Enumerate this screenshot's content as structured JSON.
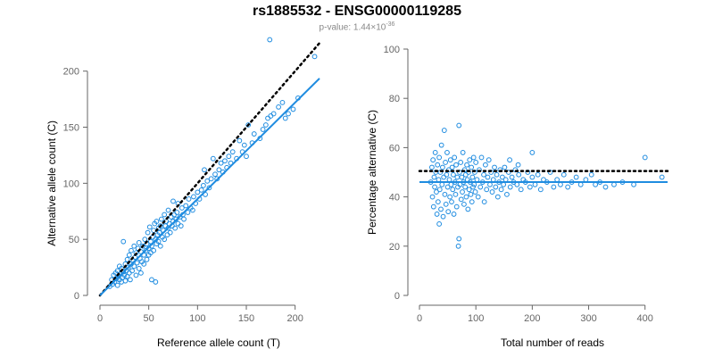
{
  "title": "rs1885532 - ENSG00000119285",
  "subtitle": {
    "prefix": "p-value: 1.44×10",
    "exponent": "-36"
  },
  "colors": {
    "points": "#1f8ce0",
    "fit": "#1f8ce0",
    "reference": "#000000",
    "axis": "#666666"
  },
  "chart_data": [
    {
      "type": "scatter",
      "xlabel": "Reference allele count (T)",
      "ylabel": "Alternative allele count (C)",
      "xlim": [
        0,
        225
      ],
      "ylim": [
        0,
        230
      ],
      "xticks": [
        0,
        50,
        100,
        150,
        200
      ],
      "yticks": [
        0,
        50,
        100,
        150,
        200
      ],
      "grid": false,
      "reference_line": {
        "style": "dotted",
        "slope": 1,
        "intercept": 0,
        "x_range": [
          0,
          225
        ]
      },
      "fit_line": {
        "style": "solid",
        "slope": 0.86,
        "intercept": 0,
        "x_range": [
          0,
          225
        ]
      },
      "points": [
        [
          10,
          8
        ],
        [
          12,
          14
        ],
        [
          13,
          10
        ],
        [
          14,
          18
        ],
        [
          15,
          12
        ],
        [
          16,
          20
        ],
        [
          17,
          15
        ],
        [
          18,
          22
        ],
        [
          18,
          9
        ],
        [
          19,
          17
        ],
        [
          20,
          14
        ],
        [
          20,
          26
        ],
        [
          21,
          19
        ],
        [
          22,
          12
        ],
        [
          22,
          24
        ],
        [
          23,
          16
        ],
        [
          24,
          21
        ],
        [
          24,
          48
        ],
        [
          25,
          18
        ],
        [
          26,
          28
        ],
        [
          26,
          13
        ],
        [
          27,
          22
        ],
        [
          28,
          17
        ],
        [
          28,
          32
        ],
        [
          29,
          25
        ],
        [
          30,
          20
        ],
        [
          30,
          36
        ],
        [
          31,
          14
        ],
        [
          32,
          28
        ],
        [
          32,
          40
        ],
        [
          33,
          22
        ],
        [
          34,
          31
        ],
        [
          35,
          26
        ],
        [
          35,
          44
        ],
        [
          36,
          34
        ],
        [
          37,
          18
        ],
        [
          37,
          38
        ],
        [
          38,
          29
        ],
        [
          39,
          42
        ],
        [
          40,
          24
        ],
        [
          40,
          47
        ],
        [
          41,
          33
        ],
        [
          42,
          39
        ],
        [
          42,
          20
        ],
        [
          43,
          30
        ],
        [
          44,
          44
        ],
        [
          45,
          36
        ],
        [
          45,
          28
        ],
        [
          46,
          50
        ],
        [
          47,
          40
        ],
        [
          48,
          32
        ],
        [
          48,
          46
        ],
        [
          49,
          56
        ],
        [
          50,
          42
        ],
        [
          50,
          36
        ],
        [
          51,
          61
        ],
        [
          52,
          48
        ],
        [
          52,
          38
        ],
        [
          53,
          44
        ],
        [
          53,
          14
        ],
        [
          54,
          52
        ],
        [
          55,
          58
        ],
        [
          55,
          40
        ],
        [
          56,
          64
        ],
        [
          57,
          50
        ],
        [
          57,
          12
        ],
        [
          58,
          46
        ],
        [
          58,
          66
        ],
        [
          59,
          54
        ],
        [
          60,
          60
        ],
        [
          60,
          48
        ],
        [
          61,
          56
        ],
        [
          62,
          44
        ],
        [
          62,
          62
        ],
        [
          63,
          68
        ],
        [
          64,
          52
        ],
        [
          65,
          58
        ],
        [
          66,
          50
        ],
        [
          66,
          72
        ],
        [
          67,
          62
        ],
        [
          68,
          66
        ],
        [
          69,
          54
        ],
        [
          70,
          60
        ],
        [
          70,
          76
        ],
        [
          71,
          64
        ],
        [
          72,
          56
        ],
        [
          73,
          70
        ],
        [
          74,
          62
        ],
        [
          75,
          66
        ],
        [
          75,
          84
        ],
        [
          76,
          72
        ],
        [
          77,
          60
        ],
        [
          78,
          68
        ],
        [
          79,
          74
        ],
        [
          80,
          64
        ],
        [
          80,
          82
        ],
        [
          82,
          70
        ],
        [
          83,
          62
        ],
        [
          84,
          78
        ],
        [
          85,
          72
        ],
        [
          86,
          68
        ],
        [
          88,
          80
        ],
        [
          90,
          74
        ],
        [
          91,
          86
        ],
        [
          93,
          78
        ],
        [
          95,
          76
        ],
        [
          96,
          88
        ],
        [
          98,
          82
        ],
        [
          100,
          92
        ],
        [
          102,
          86
        ],
        [
          104,
          94
        ],
        [
          106,
          98
        ],
        [
          107,
          112
        ],
        [
          108,
          90
        ],
        [
          110,
          102
        ],
        [
          112,
          96
        ],
        [
          114,
          104
        ],
        [
          116,
          122
        ],
        [
          118,
          108
        ],
        [
          120,
          104
        ],
        [
          122,
          112
        ],
        [
          124,
          118
        ],
        [
          126,
          110
        ],
        [
          128,
          120
        ],
        [
          130,
          114
        ],
        [
          132,
          124
        ],
        [
          134,
          118
        ],
        [
          136,
          128
        ],
        [
          140,
          122
        ],
        [
          143,
          138
        ],
        [
          146,
          128
        ],
        [
          148,
          134
        ],
        [
          150,
          124
        ],
        [
          152,
          152
        ],
        [
          156,
          136
        ],
        [
          158,
          144
        ],
        [
          164,
          140
        ],
        [
          167,
          148
        ],
        [
          170,
          152
        ],
        [
          172,
          158
        ],
        [
          175,
          160
        ],
        [
          178,
          162
        ],
        [
          183,
          168
        ],
        [
          190,
          158
        ],
        [
          193,
          162
        ],
        [
          198,
          166
        ],
        [
          203,
          176
        ],
        [
          174,
          228
        ],
        [
          220,
          213
        ],
        [
          187,
          172
        ]
      ]
    },
    {
      "type": "scatter",
      "xlabel": "Total number of reads",
      "ylabel": "Percentage alternative (C)",
      "xlim": [
        0,
        440
      ],
      "ylim": [
        0,
        100
      ],
      "xticks": [
        0,
        100,
        200,
        300,
        400
      ],
      "yticks": [
        0,
        20,
        40,
        60,
        80,
        100
      ],
      "grid": false,
      "reference_line": {
        "style": "dotted",
        "y": 50.5,
        "x_range": [
          0,
          440
        ]
      },
      "fit_line": {
        "style": "solid",
        "y": 46,
        "x_range": [
          0,
          440
        ]
      },
      "points": [
        [
          20,
          46
        ],
        [
          22,
          52
        ],
        [
          23,
          40
        ],
        [
          24,
          55
        ],
        [
          25,
          36
        ],
        [
          26,
          48
        ],
        [
          27,
          44
        ],
        [
          28,
          58
        ],
        [
          29,
          50
        ],
        [
          30,
          42
        ],
        [
          31,
          33
        ],
        [
          32,
          53
        ],
        [
          33,
          38
        ],
        [
          34,
          47
        ],
        [
          35,
          56
        ],
        [
          35,
          29
        ],
        [
          36,
          43
        ],
        [
          37,
          50
        ],
        [
          38,
          35
        ],
        [
          39,
          61
        ],
        [
          40,
          45
        ],
        [
          41,
          52
        ],
        [
          42,
          32
        ],
        [
          43,
          48
        ],
        [
          44,
          67
        ],
        [
          45,
          41
        ],
        [
          46,
          54
        ],
        [
          47,
          37
        ],
        [
          48,
          49
        ],
        [
          49,
          58
        ],
        [
          50,
          44
        ],
        [
          51,
          34
        ],
        [
          52,
          51
        ],
        [
          53,
          47
        ],
        [
          54,
          40
        ],
        [
          55,
          55
        ],
        [
          56,
          45
        ],
        [
          57,
          38
        ],
        [
          58,
          52
        ],
        [
          59,
          43
        ],
        [
          60,
          49
        ],
        [
          61,
          33
        ],
        [
          62,
          56
        ],
        [
          63,
          46
        ],
        [
          64,
          41
        ],
        [
          65,
          53
        ],
        [
          66,
          36
        ],
        [
          67,
          48
        ],
        [
          68,
          44
        ],
        [
          69,
          20
        ],
        [
          70,
          23
        ],
        [
          70,
          69
        ],
        [
          71,
          50
        ],
        [
          72,
          45
        ],
        [
          73,
          54
        ],
        [
          74,
          39
        ],
        [
          75,
          48
        ],
        [
          76,
          42
        ],
        [
          77,
          58
        ],
        [
          78,
          46
        ],
        [
          79,
          37
        ],
        [
          80,
          51
        ],
        [
          81,
          44
        ],
        [
          82,
          49
        ],
        [
          83,
          40
        ],
        [
          84,
          53
        ],
        [
          85,
          47
        ],
        [
          86,
          35
        ],
        [
          87,
          50
        ],
        [
          88,
          43
        ],
        [
          89,
          55
        ],
        [
          90,
          46
        ],
        [
          91,
          41
        ],
        [
          92,
          52
        ],
        [
          93,
          38
        ],
        [
          94,
          48
        ],
        [
          95,
          44
        ],
        [
          96,
          56
        ],
        [
          97,
          45
        ],
        [
          98,
          50
        ],
        [
          99,
          42
        ],
        [
          100,
          54
        ],
        [
          102,
          47
        ],
        [
          104,
          40
        ],
        [
          106,
          51
        ],
        [
          108,
          44
        ],
        [
          110,
          56
        ],
        [
          112,
          46
        ],
        [
          114,
          49
        ],
        [
          115,
          38
        ],
        [
          117,
          53
        ],
        [
          119,
          43
        ],
        [
          121,
          48
        ],
        [
          123,
          55
        ],
        [
          125,
          45
        ],
        [
          127,
          50
        ],
        [
          129,
          42
        ],
        [
          131,
          47
        ],
        [
          133,
          52
        ],
        [
          135,
          44
        ],
        [
          137,
          49
        ],
        [
          139,
          40
        ],
        [
          141,
          46
        ],
        [
          143,
          51
        ],
        [
          145,
          43
        ],
        [
          147,
          48
        ],
        [
          149,
          45
        ],
        [
          151,
          52
        ],
        [
          153,
          47
        ],
        [
          155,
          41
        ],
        [
          158,
          50
        ],
        [
          161,
          44
        ],
        [
          164,
          48
        ],
        [
          167,
          46
        ],
        [
          170,
          51
        ],
        [
          173,
          45
        ],
        [
          176,
          49
        ],
        [
          180,
          43
        ],
        [
          184,
          47
        ],
        [
          188,
          46
        ],
        [
          192,
          50
        ],
        [
          196,
          44
        ],
        [
          200,
          48
        ],
        [
          205,
          45
        ],
        [
          210,
          49
        ],
        [
          215,
          43
        ],
        [
          220,
          47
        ],
        [
          226,
          46
        ],
        [
          232,
          50
        ],
        [
          238,
          44
        ],
        [
          244,
          47
        ],
        [
          250,
          45
        ],
        [
          256,
          49
        ],
        [
          263,
          44
        ],
        [
          270,
          46
        ],
        [
          278,
          48
        ],
        [
          286,
          45
        ],
        [
          295,
          47
        ],
        [
          305,
          49
        ],
        [
          312,
          45
        ],
        [
          320,
          46
        ],
        [
          330,
          44
        ],
        [
          345,
          45
        ],
        [
          360,
          46
        ],
        [
          380,
          45
        ],
        [
          400,
          56
        ],
        [
          430,
          48
        ],
        [
          200,
          58
        ],
        [
          175,
          53
        ],
        [
          160,
          55
        ]
      ]
    }
  ]
}
